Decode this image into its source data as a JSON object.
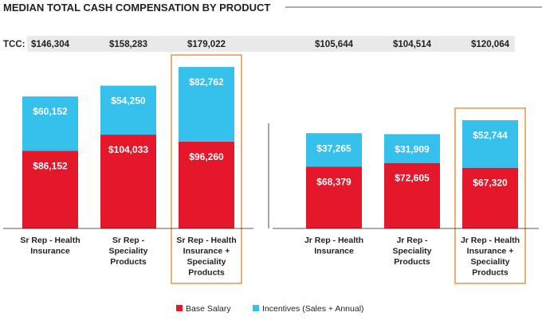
{
  "chart_data": {
    "type": "bar",
    "stacked": true,
    "title": "MEDIAN TOTAL CASH COMPENSATION BY PRODUCT",
    "tcc_label": "TCC:",
    "categories": [
      [
        "Sr Rep - Health",
        "Insurance"
      ],
      [
        "Sr Rep -",
        "Speciality",
        "Products"
      ],
      [
        "Sr Rep - Health",
        "Insurance +",
        "Speciality",
        "Products"
      ],
      [
        "Jr Rep - Health",
        "Insurance"
      ],
      [
        "Jr Rep -",
        "Speciality",
        "Products"
      ],
      [
        "Jr Rep - Health",
        "Insurance +",
        "Speciality",
        "Products"
      ]
    ],
    "tcc": [
      "$146,304",
      "$158,283",
      "$179,022",
      "$105,644",
      "$104,514",
      "$120,064"
    ],
    "highlighted": [
      2,
      5
    ],
    "series": [
      {
        "name": "Base Salary",
        "color": "#e4172b",
        "values": [
          86152,
          104033,
          96260,
          68379,
          72605,
          67320
        ],
        "labels": [
          "$86,152",
          "$104,033",
          "$96,260",
          "$68,379",
          "$72,605",
          "$67,320"
        ]
      },
      {
        "name": "Incentives (Sales + Annual)",
        "color": "#35c1ec",
        "values": [
          60152,
          54250,
          82762,
          37265,
          31909,
          52744
        ],
        "labels": [
          "$60,152",
          "$54,250",
          "$82,762",
          "$37,265",
          "$31,909",
          "$52,744"
        ]
      }
    ],
    "ylim": [
      0,
      180000
    ],
    "legend_position": "bottom-center",
    "colors": {
      "highlight_box": "#ee8b3a",
      "tcc_band": "#e8e9ea",
      "axis": "#231f20"
    }
  }
}
